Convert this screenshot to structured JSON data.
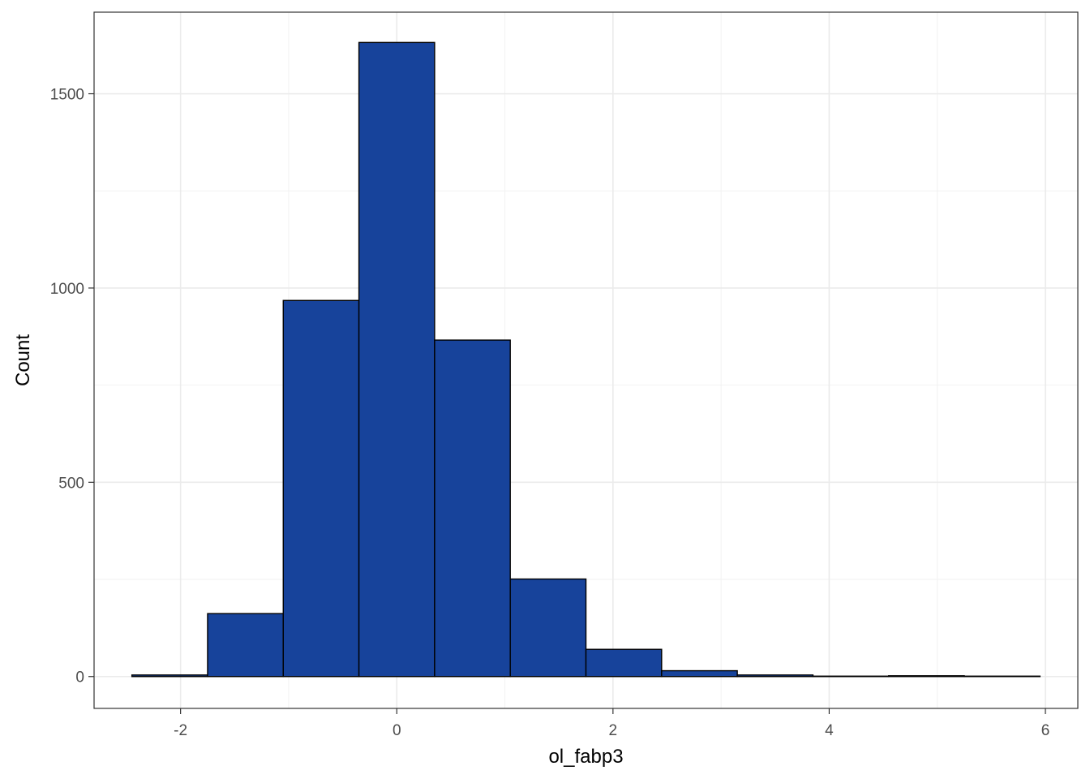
{
  "chart_data": {
    "type": "bar",
    "subtype": "histogram",
    "xlabel": "ol_fabp3",
    "ylabel": "Count",
    "xlim": [
      -2.8,
      6.3
    ],
    "ylim": [
      -82,
      1710
    ],
    "x_ticks": [
      -2,
      0,
      2,
      4,
      6
    ],
    "x_tick_labels": [
      "-2",
      "0",
      "2",
      "4",
      "6"
    ],
    "y_ticks": [
      0,
      500,
      1000,
      1500
    ],
    "y_tick_labels": [
      "0",
      "500",
      "1000",
      "1500"
    ],
    "x_minor_gridlines": [
      -1,
      1,
      3,
      5
    ],
    "y_minor_gridlines": [
      250,
      750,
      1250
    ],
    "grid": true,
    "bar_fill": "#17439b",
    "bar_stroke": "#000000",
    "bins": [
      {
        "x0": -2.45,
        "x1": -1.75,
        "count": 4
      },
      {
        "x0": -1.75,
        "x1": -1.05,
        "count": 162
      },
      {
        "x0": -1.05,
        "x1": -0.35,
        "count": 968
      },
      {
        "x0": -0.35,
        "x1": 0.35,
        "count": 1632
      },
      {
        "x0": 0.35,
        "x1": 1.05,
        "count": 866
      },
      {
        "x0": 1.05,
        "x1": 1.75,
        "count": 251
      },
      {
        "x0": 1.75,
        "x1": 2.45,
        "count": 70
      },
      {
        "x0": 2.45,
        "x1": 3.15,
        "count": 15
      },
      {
        "x0": 3.15,
        "x1": 3.85,
        "count": 4
      },
      {
        "x0": 3.85,
        "x1": 4.55,
        "count": 1
      },
      {
        "x0": 4.55,
        "x1": 5.25,
        "count": 2
      },
      {
        "x0": 5.25,
        "x1": 5.95,
        "count": 1
      }
    ]
  }
}
